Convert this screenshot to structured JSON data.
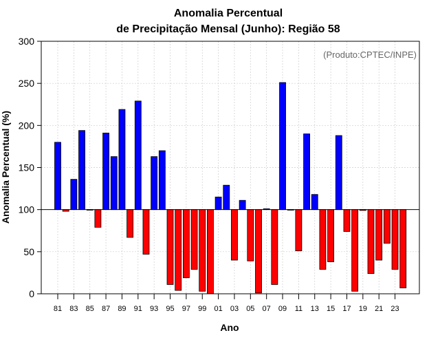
{
  "chart_data": {
    "type": "bar",
    "title_line1": "Anomalia Percentual",
    "title_line2": "de Precipitação Mensal (Junho): Região 58",
    "credit": "(Produto:CPTEC/INPE)",
    "xlabel": "Ano",
    "ylabel": "Anomalia Percentual (%)",
    "ylim": [
      0,
      300
    ],
    "yticks": [
      "0",
      "50",
      "100",
      "150",
      "200",
      "250",
      "300"
    ],
    "baseline": 100,
    "grid": true,
    "colors": {
      "above": "#0000ff",
      "below": "#ff0000",
      "edge": "#000000"
    },
    "categories": [
      "81",
      "82",
      "83",
      "84",
      "85",
      "86",
      "87",
      "88",
      "89",
      "90",
      "91",
      "92",
      "93",
      "94",
      "95",
      "96",
      "97",
      "98",
      "99",
      "00",
      "01",
      "02",
      "03",
      "04",
      "05",
      "06",
      "07",
      "08",
      "09",
      "10",
      "11",
      "12",
      "13",
      "14",
      "15",
      "16",
      "17",
      "18",
      "19",
      "20",
      "21",
      "22",
      "23",
      "24"
    ],
    "xtick_labels": [
      "81",
      "83",
      "85",
      "87",
      "89",
      "91",
      "93",
      "95",
      "97",
      "99",
      "01",
      "03",
      "05",
      "07",
      "09",
      "11",
      "13",
      "15",
      "17",
      "19",
      "21",
      "23"
    ],
    "values": [
      180,
      98,
      136,
      194,
      100,
      79,
      191,
      163,
      219,
      67,
      229,
      47,
      163,
      170,
      11,
      4,
      19,
      29,
      3,
      0,
      115,
      129,
      40,
      111,
      39,
      1,
      101,
      11,
      251,
      100,
      51,
      190,
      118,
      29,
      38,
      188,
      74,
      3,
      99,
      24,
      40,
      60,
      29,
      7
    ]
  }
}
